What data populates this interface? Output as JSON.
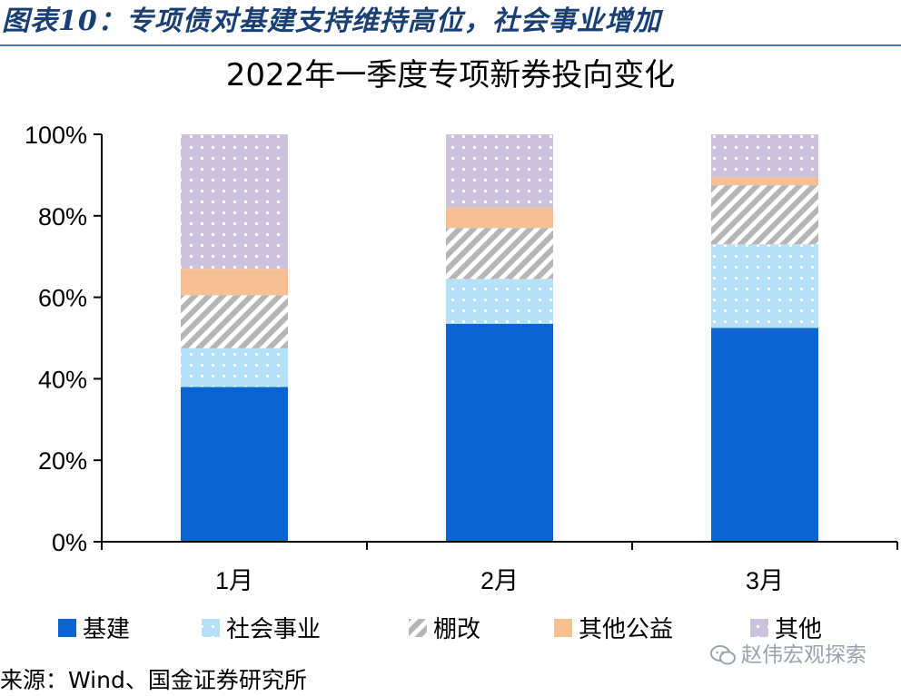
{
  "figure_title": "图表10：专项债对基建支持维持高位，社会事业增加",
  "source_note": "来源：Wind、国金证券研究所",
  "watermark": {
    "icon": "wechat-icon",
    "text": "赵伟宏观探索"
  },
  "colors": {
    "title": "#1a3f73",
    "rule": "#4f79a8",
    "infrastructure": "#0a64d2",
    "social": "#b5e1f9",
    "shantytown": "#b5b5b5",
    "public_welfare": "#f7bf94",
    "other": "#cdc2dc"
  },
  "chart_data": {
    "type": "bar",
    "stacked": true,
    "percent_stacked": true,
    "title": "2022年一季度专项新券投向变化",
    "xlabel": "",
    "ylabel": "",
    "categories": [
      "1月",
      "2月",
      "3月"
    ],
    "ylim": [
      0,
      100
    ],
    "yticks": [
      0,
      20,
      40,
      60,
      80,
      100
    ],
    "ytick_labels": [
      "0%",
      "20%",
      "40%",
      "60%",
      "80%",
      "100%"
    ],
    "grid": false,
    "legend_position": "bottom",
    "series": [
      {
        "name": "基建",
        "key": "infrastructure",
        "pattern": "solid",
        "values": [
          38,
          53.5,
          52.5
        ]
      },
      {
        "name": "社会事业",
        "key": "social",
        "pattern": "dots",
        "values": [
          9.5,
          11,
          20.5
        ]
      },
      {
        "name": "棚改",
        "key": "shantytown",
        "pattern": "stripes",
        "values": [
          13,
          12.5,
          14.5
        ]
      },
      {
        "name": "其他公益",
        "key": "public_welfare",
        "pattern": "solid",
        "values": [
          6.5,
          5,
          2
        ]
      },
      {
        "name": "其他",
        "key": "other",
        "pattern": "dots",
        "values": [
          33,
          18,
          10.5
        ]
      }
    ]
  }
}
